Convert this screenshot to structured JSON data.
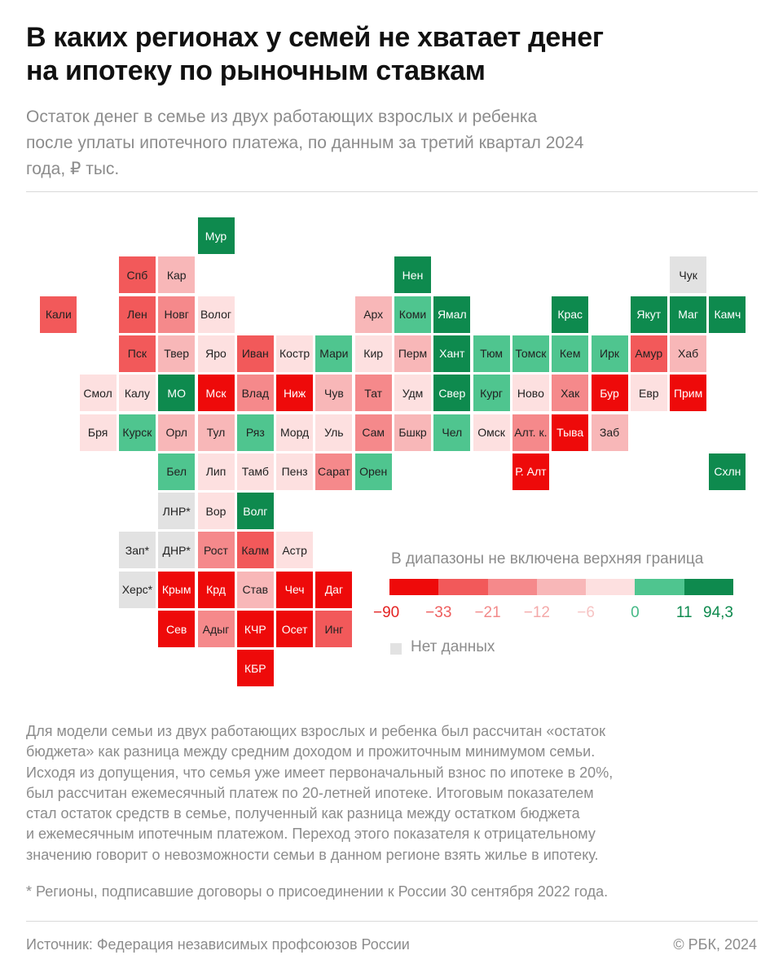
{
  "title_lines": [
    "В каких регионах у семей не хватает денег",
    "на ипотеку по рыночным ставкам"
  ],
  "subtitle_lines": [
    "Остаток денег в семье из двух работающих взрослых и ребенка",
    "после уплаты ипотечного платежа, по данным за третий квартал 2024",
    "года, ₽ тыс."
  ],
  "chart_data": {
    "type": "heatmap",
    "title": "В каких регионах у семей не хватает денег на ипотеку по рыночным ставкам",
    "unit": "₽ тыс.",
    "bins": [
      -90,
      -33,
      -21,
      -12,
      -6,
      0,
      11,
      94.3
    ],
    "bin_colors": [
      "#ee0a0a",
      "#f2595a",
      "#f5898b",
      "#f8b7b8",
      "#fde0e0",
      "#4fc58f",
      "#0e8a4e"
    ],
    "no_data_color": "#e2e2e2",
    "regions": [
      {
        "label": "Мур",
        "col": 5,
        "row": 0,
        "bin": 6
      },
      {
        "label": "Спб",
        "col": 3,
        "row": 1,
        "bin": 1
      },
      {
        "label": "Кар",
        "col": 4,
        "row": 1,
        "bin": 3
      },
      {
        "label": "Нен",
        "col": 10,
        "row": 1,
        "bin": 6
      },
      {
        "label": "Чук",
        "col": 17,
        "row": 1,
        "bin": null
      },
      {
        "label": "Кали",
        "col": 1,
        "row": 2,
        "bin": 1
      },
      {
        "label": "Лен",
        "col": 3,
        "row": 2,
        "bin": 1
      },
      {
        "label": "Новг",
        "col": 4,
        "row": 2,
        "bin": 2
      },
      {
        "label": "Волог",
        "col": 5,
        "row": 2,
        "bin": 4
      },
      {
        "label": "Арх",
        "col": 9,
        "row": 2,
        "bin": 3
      },
      {
        "label": "Коми",
        "col": 10,
        "row": 2,
        "bin": 5
      },
      {
        "label": "Ямал",
        "col": 11,
        "row": 2,
        "bin": 6
      },
      {
        "label": "Крас",
        "col": 14,
        "row": 2,
        "bin": 6
      },
      {
        "label": "Якут",
        "col": 16,
        "row": 2,
        "bin": 6
      },
      {
        "label": "Маг",
        "col": 17,
        "row": 2,
        "bin": 6
      },
      {
        "label": "Камч",
        "col": 18,
        "row": 2,
        "bin": 6
      },
      {
        "label": "Пск",
        "col": 3,
        "row": 3,
        "bin": 1
      },
      {
        "label": "Твер",
        "col": 4,
        "row": 3,
        "bin": 3
      },
      {
        "label": "Яро",
        "col": 5,
        "row": 3,
        "bin": 4
      },
      {
        "label": "Иван",
        "col": 6,
        "row": 3,
        "bin": 1
      },
      {
        "label": "Костр",
        "col": 7,
        "row": 3,
        "bin": 4
      },
      {
        "label": "Мари",
        "col": 8,
        "row": 3,
        "bin": 5
      },
      {
        "label": "Кир",
        "col": 9,
        "row": 3,
        "bin": 4
      },
      {
        "label": "Перм",
        "col": 10,
        "row": 3,
        "bin": 3
      },
      {
        "label": "Хант",
        "col": 11,
        "row": 3,
        "bin": 6
      },
      {
        "label": "Тюм",
        "col": 12,
        "row": 3,
        "bin": 5
      },
      {
        "label": "Томск",
        "col": 13,
        "row": 3,
        "bin": 5
      },
      {
        "label": "Кем",
        "col": 14,
        "row": 3,
        "bin": 5
      },
      {
        "label": "Ирк",
        "col": 15,
        "row": 3,
        "bin": 5
      },
      {
        "label": "Амур",
        "col": 16,
        "row": 3,
        "bin": 1
      },
      {
        "label": "Хаб",
        "col": 17,
        "row": 3,
        "bin": 3
      },
      {
        "label": "Смол",
        "col": 2,
        "row": 4,
        "bin": 4
      },
      {
        "label": "Калу",
        "col": 3,
        "row": 4,
        "bin": 4
      },
      {
        "label": "МО",
        "col": 4,
        "row": 4,
        "bin": 6
      },
      {
        "label": "Мск",
        "col": 5,
        "row": 4,
        "bin": 0
      },
      {
        "label": "Влад",
        "col": 6,
        "row": 4,
        "bin": 2
      },
      {
        "label": "Ниж",
        "col": 7,
        "row": 4,
        "bin": 0
      },
      {
        "label": "Чув",
        "col": 8,
        "row": 4,
        "bin": 3
      },
      {
        "label": "Тат",
        "col": 9,
        "row": 4,
        "bin": 2
      },
      {
        "label": "Удм",
        "col": 10,
        "row": 4,
        "bin": 4
      },
      {
        "label": "Свер",
        "col": 11,
        "row": 4,
        "bin": 6
      },
      {
        "label": "Кург",
        "col": 12,
        "row": 4,
        "bin": 5
      },
      {
        "label": "Ново",
        "col": 13,
        "row": 4,
        "bin": 4
      },
      {
        "label": "Хак",
        "col": 14,
        "row": 4,
        "bin": 2
      },
      {
        "label": "Бур",
        "col": 15,
        "row": 4,
        "bin": 0
      },
      {
        "label": "Евр",
        "col": 16,
        "row": 4,
        "bin": 4
      },
      {
        "label": "Прим",
        "col": 17,
        "row": 4,
        "bin": 0
      },
      {
        "label": "Бря",
        "col": 2,
        "row": 5,
        "bin": 4
      },
      {
        "label": "Курск",
        "col": 3,
        "row": 5,
        "bin": 5
      },
      {
        "label": "Орл",
        "col": 4,
        "row": 5,
        "bin": 3
      },
      {
        "label": "Тул",
        "col": 5,
        "row": 5,
        "bin": 3
      },
      {
        "label": "Ряз",
        "col": 6,
        "row": 5,
        "bin": 5
      },
      {
        "label": "Морд",
        "col": 7,
        "row": 5,
        "bin": 4
      },
      {
        "label": "Уль",
        "col": 8,
        "row": 5,
        "bin": 4
      },
      {
        "label": "Сам",
        "col": 9,
        "row": 5,
        "bin": 2
      },
      {
        "label": "Бшкр",
        "col": 10,
        "row": 5,
        "bin": 3
      },
      {
        "label": "Чел",
        "col": 11,
        "row": 5,
        "bin": 5
      },
      {
        "label": "Омск",
        "col": 12,
        "row": 5,
        "bin": 4
      },
      {
        "label": "Алт. к.",
        "col": 13,
        "row": 5,
        "bin": 2
      },
      {
        "label": "Тыва",
        "col": 14,
        "row": 5,
        "bin": 0
      },
      {
        "label": "Заб",
        "col": 15,
        "row": 5,
        "bin": 3
      },
      {
        "label": "Бел",
        "col": 4,
        "row": 6,
        "bin": 5
      },
      {
        "label": "Лип",
        "col": 5,
        "row": 6,
        "bin": 4
      },
      {
        "label": "Тамб",
        "col": 6,
        "row": 6,
        "bin": 4
      },
      {
        "label": "Пенз",
        "col": 7,
        "row": 6,
        "bin": 4
      },
      {
        "label": "Сарат",
        "col": 8,
        "row": 6,
        "bin": 2
      },
      {
        "label": "Орен",
        "col": 9,
        "row": 6,
        "bin": 5
      },
      {
        "label": "Р. Алт",
        "col": 13,
        "row": 6,
        "bin": 0
      },
      {
        "label": "Схлн",
        "col": 18,
        "row": 6,
        "bin": 6
      },
      {
        "label": "ЛНР*",
        "col": 4,
        "row": 7,
        "bin": null
      },
      {
        "label": "Вор",
        "col": 5,
        "row": 7,
        "bin": 4
      },
      {
        "label": "Волг",
        "col": 6,
        "row": 7,
        "bin": 6
      },
      {
        "label": "Зап*",
        "col": 3,
        "row": 8,
        "bin": null
      },
      {
        "label": "ДНР*",
        "col": 4,
        "row": 8,
        "bin": null
      },
      {
        "label": "Рост",
        "col": 5,
        "row": 8,
        "bin": 2
      },
      {
        "label": "Калм",
        "col": 6,
        "row": 8,
        "bin": 1
      },
      {
        "label": "Астр",
        "col": 7,
        "row": 8,
        "bin": 4
      },
      {
        "label": "Херс*",
        "col": 3,
        "row": 9,
        "bin": null
      },
      {
        "label": "Крым",
        "col": 4,
        "row": 9,
        "bin": 0
      },
      {
        "label": "Крд",
        "col": 5,
        "row": 9,
        "bin": 0
      },
      {
        "label": "Став",
        "col": 6,
        "row": 9,
        "bin": 3
      },
      {
        "label": "Чеч",
        "col": 7,
        "row": 9,
        "bin": 0
      },
      {
        "label": "Даг",
        "col": 8,
        "row": 9,
        "bin": 0
      },
      {
        "label": "Сев",
        "col": 4,
        "row": 10,
        "bin": 0
      },
      {
        "label": "Адыг",
        "col": 5,
        "row": 10,
        "bin": 2
      },
      {
        "label": "КЧР",
        "col": 6,
        "row": 10,
        "bin": 0
      },
      {
        "label": "Осет",
        "col": 7,
        "row": 10,
        "bin": 0
      },
      {
        "label": "Инг",
        "col": 8,
        "row": 10,
        "bin": 1
      },
      {
        "label": "КБР",
        "col": 6,
        "row": 11,
        "bin": 0
      }
    ]
  },
  "legend": {
    "title": "В диапазоны не включена верхняя граница",
    "labels": [
      "−90",
      "−33",
      "−21",
      "−12",
      "−6",
      "0",
      "11",
      "94,3"
    ],
    "label_colors": [
      "#e42222",
      "#ee5d5d",
      "#f28a8a",
      "#f4a9a9",
      "#f6c4c4",
      "#45b986",
      "#0e8a4e",
      "#0e8a4e"
    ],
    "no_data_label": "Нет данных"
  },
  "methodology_lines": [
    "Для модели семьи из двух работающих взрослых и ребенка был рассчитан «остаток",
    "бюджета» как разница между средним доходом и прожиточным минимумом семьи.",
    "Исходя из допущения, что семья уже имеет первоначальный взнос по ипотеке в 20%,",
    "был рассчитан ежемесячный платеж по 20-летней ипотеке. Итоговым показателем",
    "стал остаток средств в семье, полученный как разница между остатком бюджета",
    "и ежемесячным ипотечным платежом. Переход этого показателя к отрицательному",
    "значению говорит о невозможности семьи в данном регионе взять жилье в ипотеку."
  ],
  "footnote": "* Регионы, подписавшие договоры о присоединении к России 30 сентября 2022 года.",
  "source": "Источник: Федерация независимых профсоюзов России",
  "copyright": "© РБК, 2024"
}
